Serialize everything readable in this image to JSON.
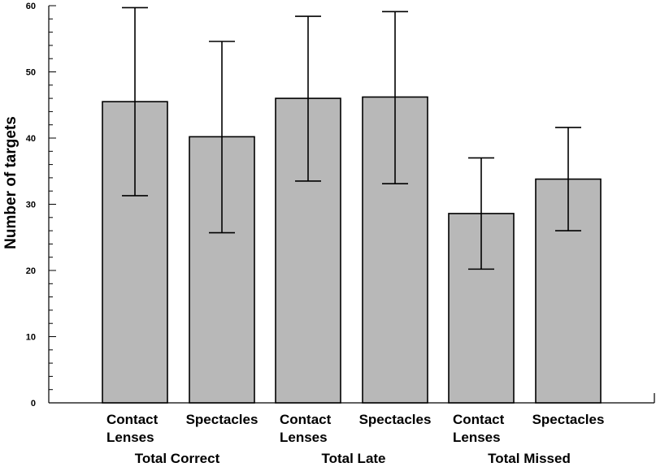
{
  "chart_data": {
    "type": "bar",
    "ylabel": "Number of targets",
    "xlabel": "",
    "ylim": [
      0,
      60
    ],
    "yticks": [
      0,
      10,
      20,
      30,
      40,
      50,
      60
    ],
    "grid": false,
    "bar_color": "#b8b8b8",
    "categories": [
      {
        "label_lines": [
          "Contact",
          "Lenses"
        ],
        "group": "Total Correct",
        "value": 45.5,
        "err_low": 31.3,
        "err_high": 59.7
      },
      {
        "label_lines": [
          "Spectacles"
        ],
        "group": "Total Correct",
        "value": 40.2,
        "err_low": 25.7,
        "err_high": 54.6
      },
      {
        "label_lines": [
          "Contact",
          "Lenses"
        ],
        "group": "Total Late",
        "value": 46.0,
        "err_low": 33.5,
        "err_high": 58.4
      },
      {
        "label_lines": [
          "Spectacles"
        ],
        "group": "Total Late",
        "value": 46.2,
        "err_low": 33.1,
        "err_high": 59.1
      },
      {
        "label_lines": [
          "Contact",
          "Lenses"
        ],
        "group": "Total Missed",
        "value": 28.6,
        "err_low": 20.2,
        "err_high": 37.0
      },
      {
        "label_lines": [
          "Spectacles"
        ],
        "group": "Total Missed",
        "value": 33.8,
        "err_low": 26.0,
        "err_high": 41.6
      }
    ],
    "groups": [
      "Total Correct",
      "Total Late",
      "Total Missed"
    ]
  }
}
